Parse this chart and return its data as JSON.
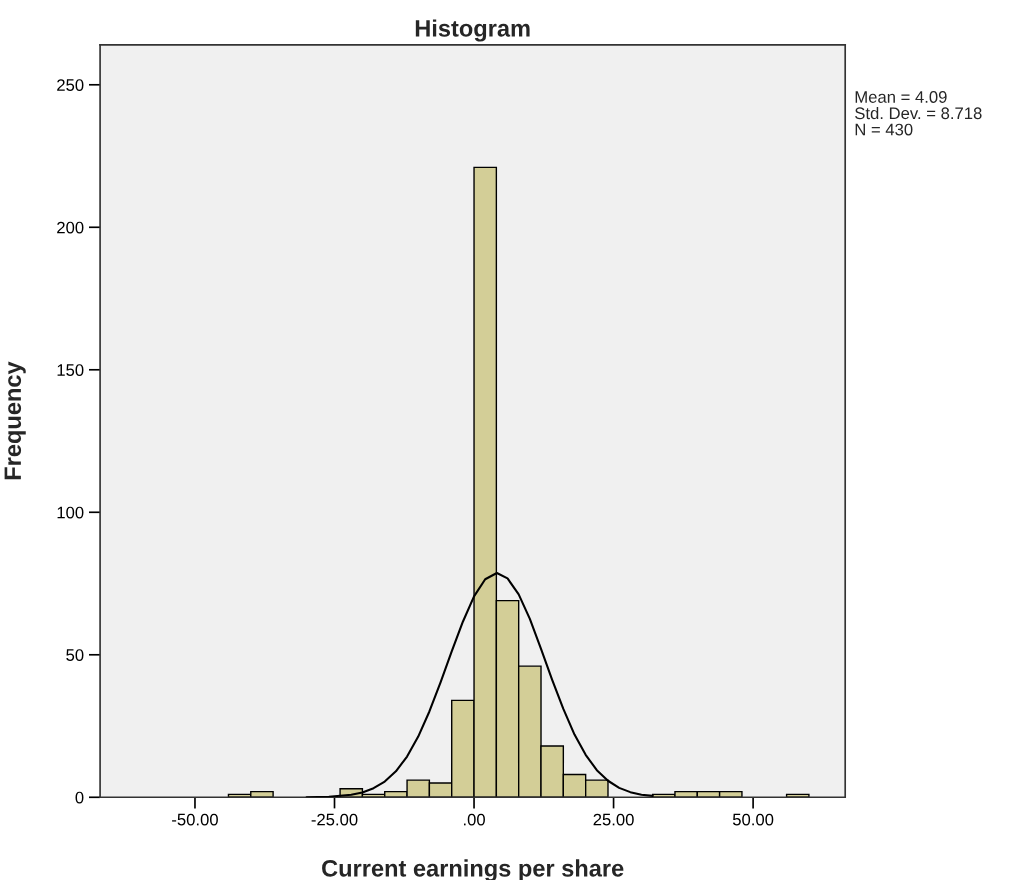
{
  "chart_data": {
    "type": "histogram",
    "title": "Histogram",
    "xlabel": "Current earnings per share",
    "ylabel": "Frequency",
    "bins": [
      -44,
      -40,
      -36,
      -32,
      -28,
      -24,
      -20,
      -16,
      -12,
      -8,
      -4,
      0,
      4,
      8,
      12,
      16,
      20,
      24,
      28,
      32,
      36,
      40,
      44,
      48,
      52,
      56,
      60
    ],
    "values": [
      1,
      2,
      0,
      0,
      0,
      3,
      1,
      2,
      6,
      5,
      34,
      221,
      69,
      46,
      18,
      8,
      6,
      0,
      0,
      1,
      2,
      2,
      2,
      0,
      0,
      1
    ],
    "color": "#d3ce97",
    "series": [
      {
        "type": "line",
        "color": "#000000",
        "x": [
          -30,
          -26,
          -22,
          -20,
          -18,
          -16,
          -14,
          -12,
          -10,
          -8,
          -6,
          -4,
          -2,
          0,
          2,
          4.09,
          6,
          8,
          10,
          12,
          14,
          16,
          18,
          20,
          22,
          24,
          26,
          28,
          30,
          32
        ],
        "values": [
          0,
          0.2,
          0.9,
          1.7,
          3.2,
          5.5,
          9.1,
          14.3,
          21.3,
          30.1,
          40.3,
          51.2,
          61.6,
          70.5,
          76.5,
          78.7,
          76.8,
          71.2,
          62.6,
          52.1,
          41.2,
          31.0,
          22.0,
          14.9,
          9.5,
          5.8,
          3.3,
          1.8,
          0.9,
          0.5
        ]
      }
    ],
    "xlim": [
      -67,
      66.5
    ],
    "ylim": [
      0,
      264
    ],
    "xticks": [
      {
        "value": -50,
        "label": "-50.00"
      },
      {
        "value": -25,
        "label": "-25.00"
      },
      {
        "value": 0,
        "label": ".00"
      },
      {
        "value": 25,
        "label": "25.00"
      },
      {
        "value": 50,
        "label": "50.00"
      }
    ],
    "yticks": [
      0,
      50,
      100,
      150,
      200,
      250
    ],
    "annotations": [
      "Mean = 4.09",
      "Std. Dev. = 8.718",
      "N = 430"
    ]
  }
}
